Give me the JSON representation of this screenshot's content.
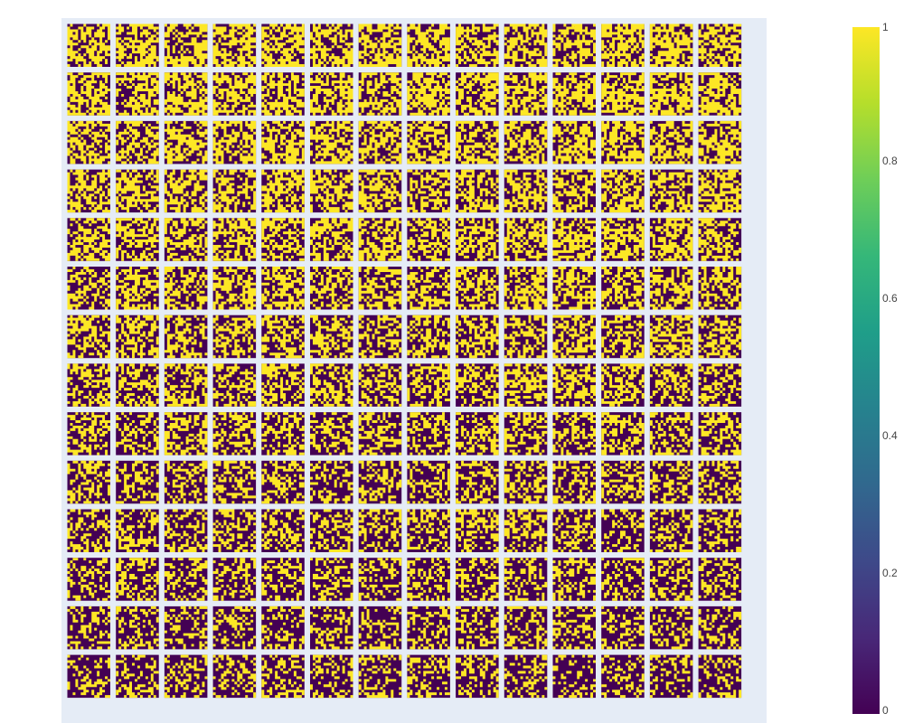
{
  "chart_data": {
    "type": "heatmap",
    "layout": "small-multiples grid",
    "rows": 14,
    "cols": 14,
    "tile_resolution": 16,
    "values": "binary (0 or 1) pixel pattern per tile",
    "colorscale": "viridis",
    "colorbar": {
      "min": 0,
      "max": 1,
      "ticks": [
        "0",
        "0.2",
        "0.4",
        "0.6",
        "0.8",
        "1"
      ],
      "colors": [
        "#440154",
        "#482878",
        "#3e4989",
        "#31688e",
        "#26828e",
        "#1f9e89",
        "#35b779",
        "#6ece58",
        "#b5de2b",
        "#fde725"
      ]
    },
    "background": "#e5ecf6"
  }
}
